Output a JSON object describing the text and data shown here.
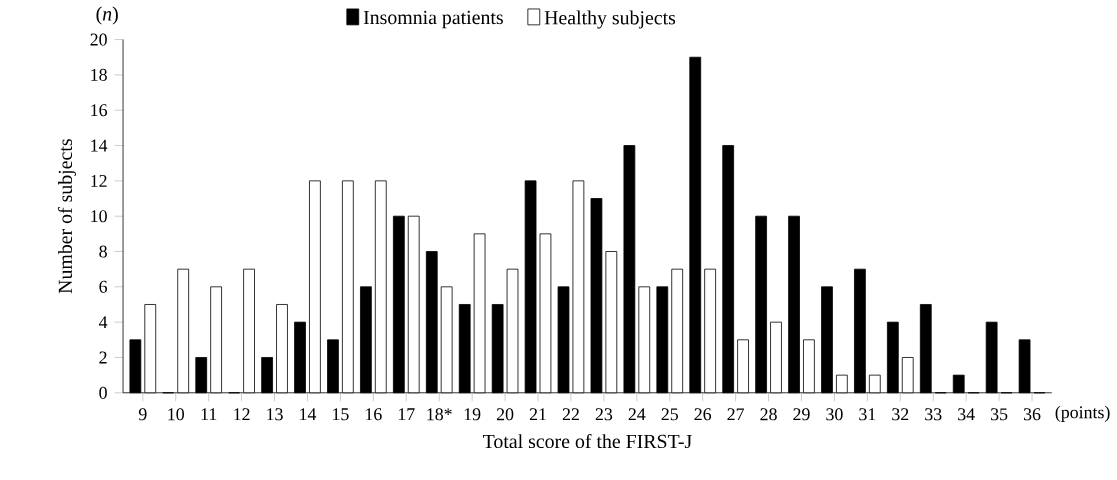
{
  "chart_data": {
    "type": "bar",
    "xlabel": "Total score of the FIRST-J",
    "ylabel": "Number of subjects",
    "categories": [
      "9",
      "10",
      "11",
      "12",
      "13",
      "14",
      "15",
      "16",
      "17",
      "18*",
      "19",
      "20",
      "21",
      "22",
      "23",
      "24",
      "25",
      "26",
      "27",
      "28",
      "29",
      "30",
      "31",
      "32",
      "33",
      "34",
      "35",
      "36"
    ],
    "series": [
      {
        "name": "Insomnia patients",
        "color": "#000000",
        "values": [
          3,
          0,
          2,
          0,
          2,
          4,
          3,
          6,
          10,
          8,
          5,
          5,
          12,
          6,
          11,
          14,
          6,
          19,
          14,
          10,
          10,
          6,
          7,
          4,
          5,
          1,
          4,
          3
        ]
      },
      {
        "name": "Healthy subjects",
        "color": "#ffffff",
        "values": [
          5,
          7,
          6,
          7,
          5,
          12,
          12,
          12,
          10,
          6,
          9,
          7,
          9,
          12,
          8,
          6,
          7,
          7,
          3,
          4,
          3,
          1,
          1,
          2,
          0,
          0,
          0,
          0
        ]
      }
    ],
    "ylim": [
      0,
      20
    ],
    "yticks": [
      0,
      2,
      4,
      6,
      8,
      10,
      12,
      14,
      16,
      18,
      20
    ],
    "grid": false,
    "legend": "top",
    "annotations": [
      "(*n*)",
      "(points)"
    ]
  }
}
